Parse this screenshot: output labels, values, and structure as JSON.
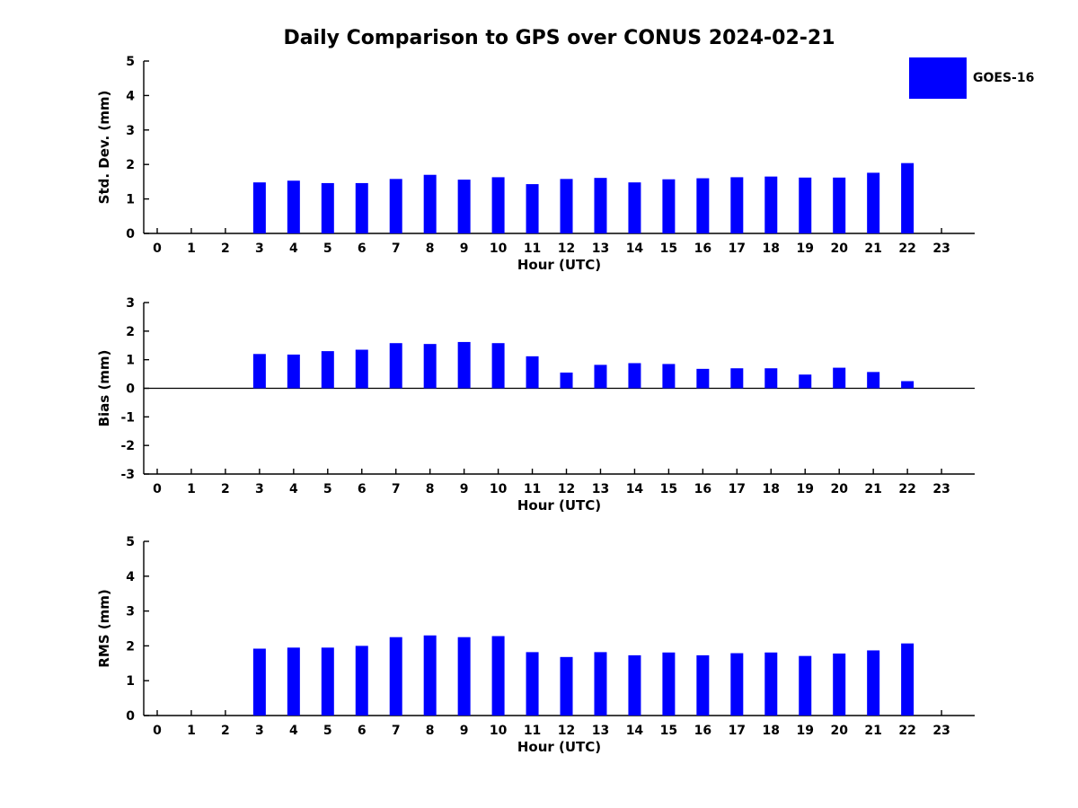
{
  "title": "Daily Comparison to GPS over CONUS 2024-02-21",
  "legend": {
    "label": "GOES-16",
    "color": "#0000ff"
  },
  "chart_data": [
    {
      "type": "bar",
      "id": "std-dev",
      "ylabel": "Std. Dev. (mm)",
      "xlabel": "Hour (UTC)",
      "ylim": [
        0,
        5
      ],
      "yticks": [
        0,
        1,
        2,
        3,
        4,
        5
      ],
      "categories": [
        0,
        1,
        2,
        3,
        4,
        5,
        6,
        7,
        8,
        9,
        10,
        11,
        12,
        13,
        14,
        15,
        16,
        17,
        18,
        19,
        20,
        21,
        22,
        23
      ],
      "values": [
        null,
        null,
        null,
        1.48,
        1.53,
        1.46,
        1.46,
        1.58,
        1.7,
        1.56,
        1.63,
        1.43,
        1.58,
        1.61,
        1.48,
        1.57,
        1.6,
        1.63,
        1.65,
        1.62,
        1.62,
        1.76,
        2.04,
        null
      ],
      "bar_color": "#0000ff",
      "grid": false,
      "legend_position": "upper-right"
    },
    {
      "type": "bar",
      "id": "bias",
      "ylabel": "Bias (mm)",
      "xlabel": "Hour (UTC)",
      "ylim": [
        -3,
        3
      ],
      "yticks": [
        -3,
        -2,
        -1,
        0,
        1,
        2,
        3
      ],
      "categories": [
        0,
        1,
        2,
        3,
        4,
        5,
        6,
        7,
        8,
        9,
        10,
        11,
        12,
        13,
        14,
        15,
        16,
        17,
        18,
        19,
        20,
        21,
        22,
        23
      ],
      "values": [
        null,
        null,
        null,
        1.2,
        1.18,
        1.3,
        1.35,
        1.58,
        1.55,
        1.62,
        1.58,
        1.12,
        0.55,
        0.82,
        0.88,
        0.85,
        0.68,
        0.7,
        0.7,
        0.48,
        0.72,
        0.57,
        0.25,
        null
      ],
      "bar_color": "#0000ff",
      "grid": false,
      "zero_line": true
    },
    {
      "type": "bar",
      "id": "rms",
      "ylabel": "RMS (mm)",
      "xlabel": "Hour (UTC)",
      "ylim": [
        0,
        5
      ],
      "yticks": [
        0,
        1,
        2,
        3,
        4,
        5
      ],
      "categories": [
        0,
        1,
        2,
        3,
        4,
        5,
        6,
        7,
        8,
        9,
        10,
        11,
        12,
        13,
        14,
        15,
        16,
        17,
        18,
        19,
        20,
        21,
        22,
        23
      ],
      "values": [
        null,
        null,
        null,
        1.92,
        1.95,
        1.95,
        2.0,
        2.25,
        2.3,
        2.25,
        2.28,
        1.82,
        1.68,
        1.82,
        1.73,
        1.81,
        1.73,
        1.79,
        1.81,
        1.71,
        1.78,
        1.87,
        2.07,
        null
      ],
      "bar_color": "#0000ff",
      "grid": false
    }
  ]
}
